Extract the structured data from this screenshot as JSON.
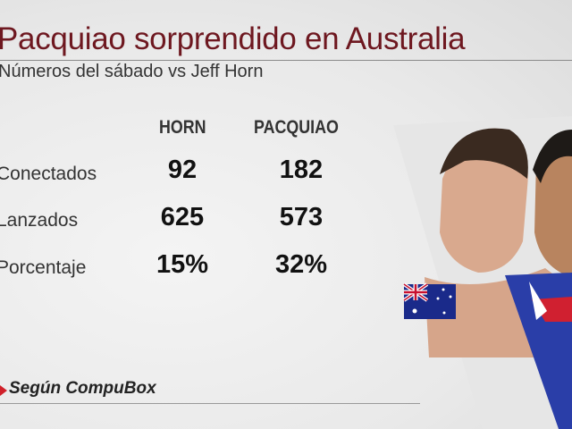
{
  "title": "Pacquiao sorprendido en Australia",
  "subtitle": "Números del sábado vs Jeff Horn",
  "columns": [
    "HORN",
    "PACQUIAO"
  ],
  "rows": [
    {
      "label": "Conectados",
      "horn": "92",
      "pacquiao": "182"
    },
    {
      "label": "Lanzados",
      "horn": "625",
      "pacquiao": "573"
    },
    {
      "label": "Porcentaje",
      "horn": "15%",
      "pacquiao": "32%"
    }
  ],
  "footer": "Según CompuBox",
  "colors": {
    "title": "#6e1820",
    "accent": "#d0202a"
  }
}
